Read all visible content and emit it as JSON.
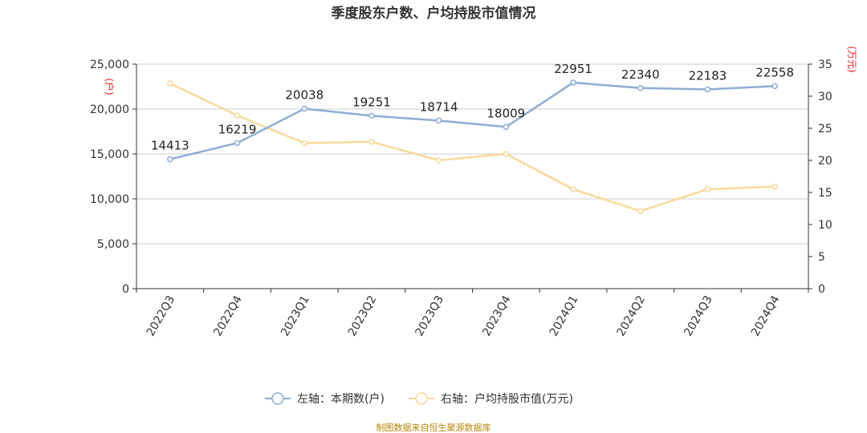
{
  "chart_data": {
    "type": "line",
    "title": "季度股东户数、户均持股市值情况",
    "categories": [
      "2022Q3",
      "2022Q4",
      "2023Q1",
      "2023Q2",
      "2023Q3",
      "2023Q4",
      "2024Q1",
      "2024Q2",
      "2024Q3",
      "2024Q4"
    ],
    "series": [
      {
        "name": "左轴：本期数(户)",
        "axis": "left",
        "color": "#8eadd6",
        "values": [
          14413,
          16219,
          20038,
          19251,
          18714,
          18009,
          22951,
          22340,
          22183,
          22558
        ],
        "labels": [
          "14413",
          "16219",
          "20038",
          "19251",
          "18714",
          "18009",
          "22951",
          "22340",
          "22183",
          "22558"
        ]
      },
      {
        "name": "右轴：户均持股市值(万元)",
        "axis": "right",
        "color": "#fad89a",
        "values": [
          32.0,
          27.0,
          22.7,
          22.9,
          20.0,
          21.0,
          15.5,
          12.1,
          15.5,
          15.9
        ]
      }
    ],
    "y_left": {
      "unit": "(户)",
      "ylim": [
        0,
        25000
      ],
      "ticks": [
        "0",
        "5,000",
        "10,000",
        "15,000",
        "20,000",
        "25,000"
      ]
    },
    "y_right": {
      "unit": "(万元)",
      "ylim": [
        0,
        35
      ],
      "ticks": [
        "0",
        "5",
        "10",
        "15",
        "20",
        "25",
        "30",
        "35"
      ]
    },
    "grid": true,
    "legend_position": "bottom-center"
  },
  "source_note": "制图数据来自恒生聚源数据库"
}
